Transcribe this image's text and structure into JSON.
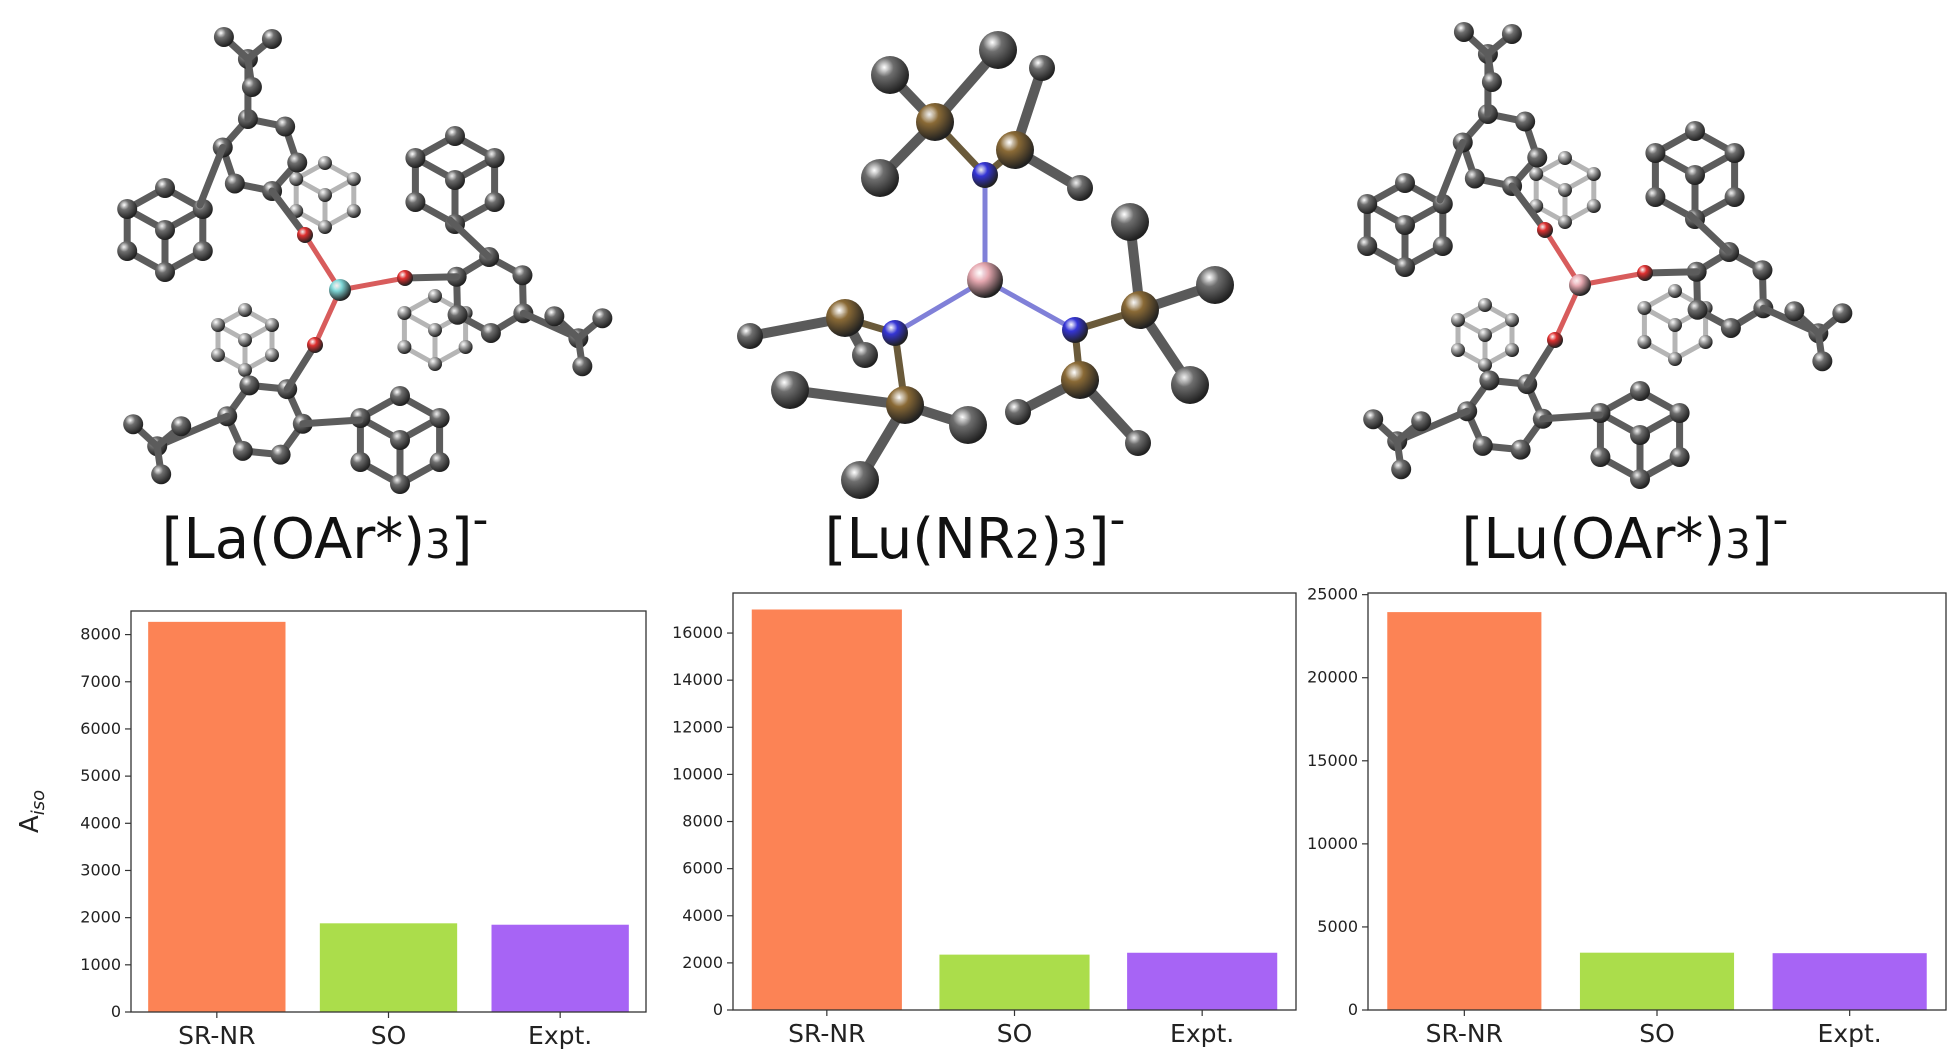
{
  "colors": {
    "sr_nr": "#fc8355",
    "so": "#abdd4b",
    "expt": "#a764f5",
    "carbon": "#6e6e6e",
    "oxygen": "#e03030",
    "nitrogen": "#3535d6",
    "silicon": "#8a6a36",
    "la": "#7ed6d6",
    "lu": "#e6a8b0"
  },
  "panels": [
    {
      "title": {
        "pre": "[La(OAr*)",
        "sub": "3",
        "post": "]",
        "sup": "-"
      },
      "molecule": "la-oar-complex"
    },
    {
      "title": {
        "pre": "[Lu(NR",
        "sub": "2",
        "mid": ")",
        "sub2": "3",
        "post": "]",
        "sup": "-"
      },
      "molecule": "lu-nr2-complex"
    },
    {
      "title": {
        "pre": "[Lu(OAr*)",
        "sub": "3",
        "post": "]",
        "sup": "-"
      },
      "molecule": "lu-oar-complex"
    }
  ],
  "chart_data": [
    {
      "type": "bar",
      "categories": [
        "SR-NR",
        "SO",
        "Expt."
      ],
      "values": [
        8270,
        1880,
        1850
      ],
      "ylim": [
        0,
        8500
      ],
      "yticks": [
        0,
        1000,
        2000,
        3000,
        4000,
        5000,
        6000,
        7000,
        8000
      ],
      "ylabel": "A",
      "ylabel_sub": "iso"
    },
    {
      "type": "bar",
      "categories": [
        "SR-NR",
        "SO",
        "Expt."
      ],
      "values": [
        17000,
        2350,
        2430
      ],
      "ylim": [
        0,
        17700
      ],
      "yticks": [
        0,
        2000,
        4000,
        6000,
        8000,
        10000,
        12000,
        14000,
        16000
      ],
      "ylabel": "",
      "ylabel_sub": ""
    },
    {
      "type": "bar",
      "categories": [
        "SR-NR",
        "SO",
        "Expt."
      ],
      "values": [
        23950,
        3450,
        3420
      ],
      "ylim": [
        0,
        25100
      ],
      "yticks": [
        0,
        5000,
        10000,
        15000,
        20000,
        25000
      ],
      "ylabel": "",
      "ylabel_sub": ""
    }
  ]
}
